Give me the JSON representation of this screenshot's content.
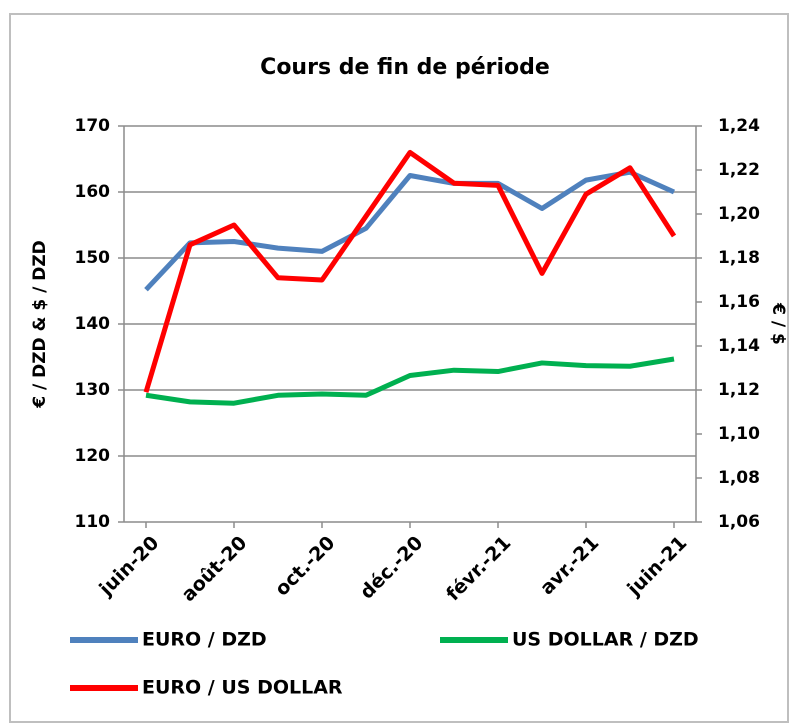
{
  "chart_data": {
    "type": "line",
    "title": "Cours de fin de période",
    "y_label": "€ / DZD & $ / DZD",
    "y2_label": "€ / $",
    "categories": [
      "juin-20",
      null,
      "août-20",
      null,
      "oct.-20",
      null,
      "déc.-20",
      null,
      "févr.-21",
      null,
      "avr.-21",
      null,
      "juin-21"
    ],
    "series": [
      {
        "name": "EURO / DZD",
        "color": "#4f81bd",
        "values": [
          145.2,
          152.3,
          152.5,
          151.5,
          151,
          154.5,
          162.5,
          161.3,
          161.3,
          157.5,
          161.8,
          163,
          160
        ]
      },
      {
        "name": "US DOLLAR / DZD",
        "color": "#00b050",
        "values": [
          129.2,
          128.2,
          128,
          129.2,
          129.4,
          129.2,
          132.2,
          133,
          132.8,
          134.1,
          133.7,
          133.6,
          134.7
        ]
      },
      {
        "name": "EURO / US DOLLAR",
        "color": "#ff0000",
        "axis": "y2",
        "values": [
          1.119,
          1.186,
          1.195,
          1.171,
          1.17,
          1.199,
          1.228,
          1.214,
          1.213,
          1.173,
          1.209,
          1.221,
          1.19
        ]
      }
    ],
    "ylim": [
      110,
      170
    ],
    "yticks": [
      110,
      120,
      130,
      140,
      150,
      160,
      170
    ],
    "y2lim": [
      1.06,
      1.24
    ],
    "y2ticks": [
      {
        "value": 1.06,
        "label": "1,06"
      },
      {
        "value": 1.08,
        "label": "1,08"
      },
      {
        "value": 1.1,
        "label": "1,10"
      },
      {
        "value": 1.12,
        "label": "1,12"
      },
      {
        "value": 1.14,
        "label": "1,14"
      },
      {
        "value": 1.16,
        "label": "1,16"
      },
      {
        "value": 1.18,
        "label": "1,18"
      },
      {
        "value": 1.2,
        "label": "1,20"
      },
      {
        "value": 1.22,
        "label": "1,22"
      },
      {
        "value": 1.24,
        "label": "1,24"
      }
    ],
    "grid": true
  }
}
